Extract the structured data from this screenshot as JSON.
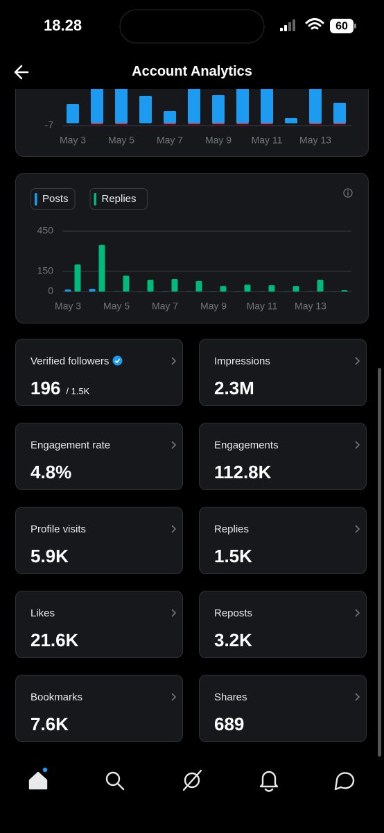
{
  "status_bar": {
    "time": "18.28",
    "battery": "60"
  },
  "header": {
    "title": "Account Analytics"
  },
  "chart_data": [
    {
      "type": "bar",
      "categories": [
        "May 3",
        null,
        "May 5",
        null,
        "May 7",
        null,
        "May 9",
        null,
        "May 11",
        null,
        "May 13",
        null
      ],
      "series": [
        {
          "color": "#1d9bf0",
          "values": [
            55,
            130,
            150,
            79,
            35,
            140,
            81,
            125,
            110,
            15,
            160,
            59
          ]
        },
        {
          "color": "#f4212e",
          "values": [
            0,
            -3,
            -3,
            0,
            -3,
            -3,
            -3,
            -3,
            -3,
            0,
            -3,
            -3
          ]
        }
      ],
      "ylim": [
        -7,
        200
      ],
      "yticks": [
        -7
      ],
      "grid": true
    },
    {
      "type": "bar",
      "categories": [
        "May 3",
        null,
        "May 5",
        null,
        "May 7",
        null,
        "May 9",
        null,
        "May 11",
        null,
        "May 13",
        null
      ],
      "series": [
        {
          "name": "Posts",
          "color": "#1d9bf0",
          "values": [
            15,
            20,
            1,
            1,
            2,
            1,
            1,
            1,
            1,
            1,
            1,
            1
          ]
        },
        {
          "name": "Replies",
          "color": "#00ba7c",
          "values": [
            202,
            347,
            119,
            88,
            93,
            78,
            41,
            52,
            47,
            41,
            88,
            10
          ]
        }
      ],
      "ylim": [
        0,
        450
      ],
      "yticks": [
        0,
        150,
        450
      ],
      "grid": true
    }
  ],
  "stats": [
    {
      "label": "Verified followers",
      "value": "196",
      "total": "/ 1.5K"
    },
    {
      "label": "Impressions",
      "value": "2.3M"
    },
    {
      "label": "Engagement rate",
      "value": "4.8%"
    },
    {
      "label": "Engagements",
      "value": "112.8K"
    },
    {
      "label": "Profile visits",
      "value": "5.9K"
    },
    {
      "label": "Replies",
      "value": "1.5K"
    },
    {
      "label": "Likes",
      "value": "21.6K"
    },
    {
      "label": "Reposts",
      "value": "3.2K"
    },
    {
      "label": "Bookmarks",
      "value": "7.6K"
    },
    {
      "label": "Shares",
      "value": "689"
    }
  ]
}
